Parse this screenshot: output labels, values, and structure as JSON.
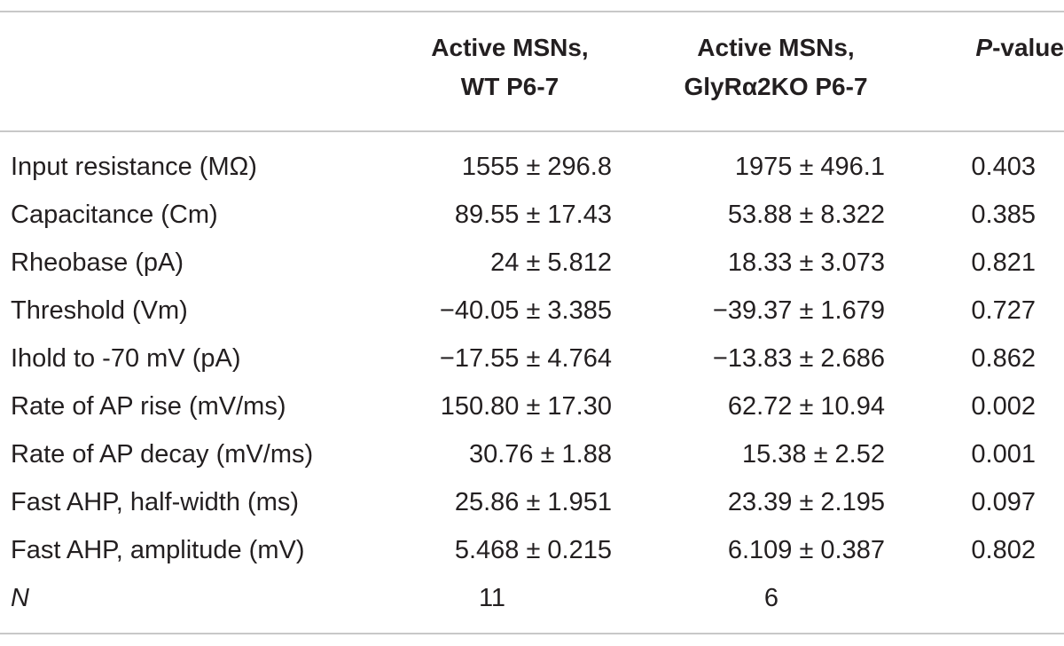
{
  "table": {
    "headers": {
      "wt": [
        "Active MSNs,",
        "WT P6-7"
      ],
      "ko": [
        "Active MSNs,",
        "GlyRα2KO P6-7"
      ],
      "p_italic": "P",
      "p_rest": "-value"
    },
    "rows": [
      {
        "label": "Input resistance (MΩ)",
        "wt": "1555 ± 296.8",
        "ko": "1975 ± 496.1",
        "p": "0.403"
      },
      {
        "label": "Capacitance (Cm)",
        "wt": "89.55 ± 17.43",
        "ko": "53.88 ± 8.322",
        "p": "0.385"
      },
      {
        "label": "Rheobase (pA)",
        "wt": "24 ± 5.812",
        "ko": "18.33 ± 3.073",
        "p": "0.821"
      },
      {
        "label": "Threshold (Vm)",
        "wt": "−40.05 ± 3.385",
        "ko": "−39.37 ± 1.679",
        "p": "0.727"
      },
      {
        "label": "Ihold to -70 mV (pA)",
        "wt": "−17.55 ± 4.764",
        "ko": "−13.83 ± 2.686",
        "p": "0.862"
      },
      {
        "label": "Rate of AP rise (mV/ms)",
        "wt": "150.80 ± 17.30",
        "ko": "62.72 ± 10.94",
        "p": "0.002"
      },
      {
        "label": "Rate of AP decay (mV/ms)",
        "wt": "30.76 ± 1.88",
        "ko": "15.38 ± 2.52",
        "p": "0.001"
      },
      {
        "label": "Fast AHP, half-width (ms)",
        "wt": "25.86 ± 1.951",
        "ko": "23.39 ± 2.195",
        "p": "0.097"
      },
      {
        "label": "Fast AHP, amplitude (mV)",
        "wt": "5.468 ± 0.215",
        "ko": "6.109 ± 0.387",
        "p": "0.802"
      }
    ],
    "n_row": {
      "label": "N",
      "wt": "11",
      "ko": "6",
      "p": ""
    }
  }
}
